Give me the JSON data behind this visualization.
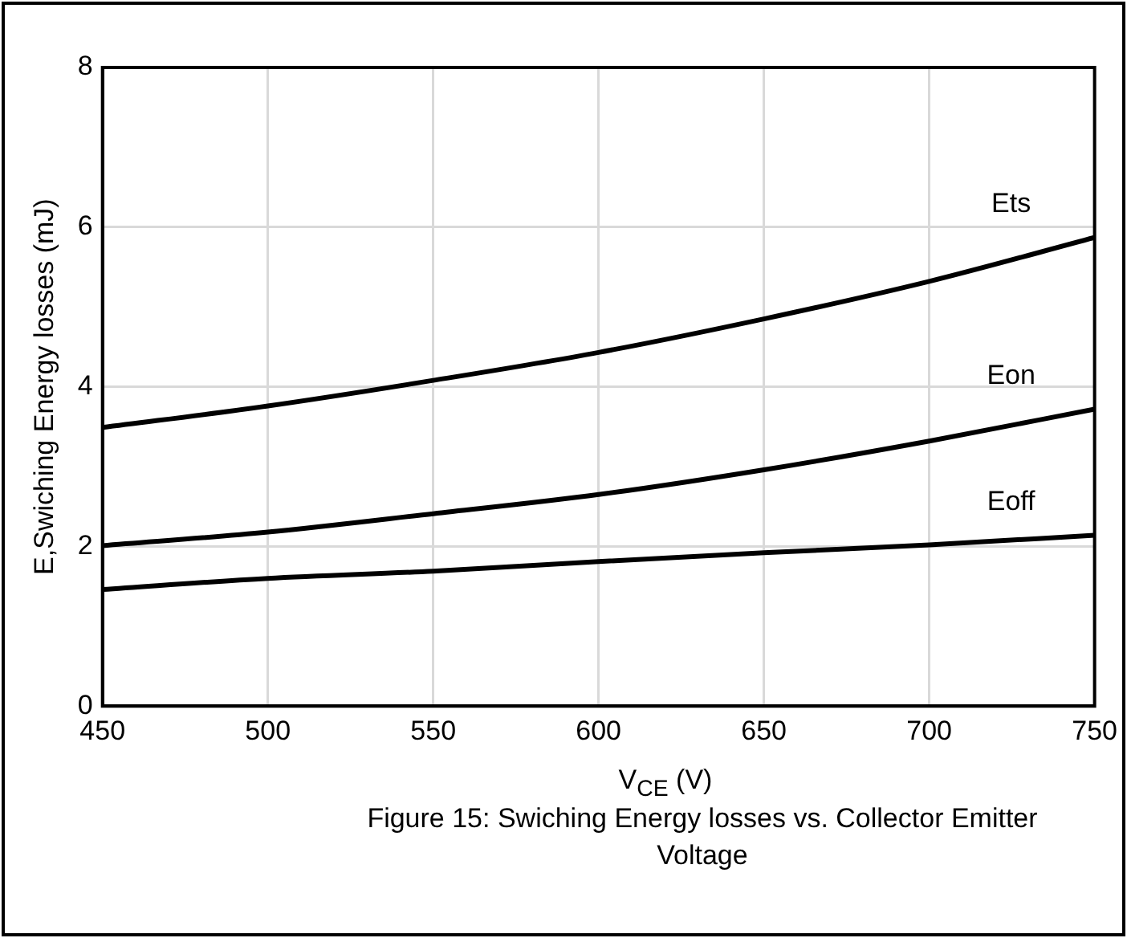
{
  "chart_data": {
    "type": "line",
    "xlabel": "V$_{CE}$ (V)",
    "ylabel": "E,Swiching Energy losses (mJ)",
    "x": [
      450,
      500,
      550,
      600,
      650,
      700,
      750
    ],
    "series": [
      {
        "name": "Ets",
        "color": "#000000",
        "values": [
          3.49,
          3.76,
          4.08,
          4.43,
          4.85,
          5.32,
          5.87
        ]
      },
      {
        "name": "Eon",
        "color": "#000000",
        "values": [
          2.01,
          2.18,
          2.41,
          2.65,
          2.96,
          3.32,
          3.72
        ]
      },
      {
        "name": "Eoff",
        "color": "#000000",
        "values": [
          1.46,
          1.6,
          1.69,
          1.81,
          1.92,
          2.02,
          2.14
        ]
      }
    ],
    "xlim": [
      450,
      750
    ],
    "xticks": [
      450,
      500,
      550,
      600,
      650,
      700,
      750
    ],
    "ylim": [
      0,
      8
    ],
    "yticks": [
      0,
      2,
      4,
      6,
      8
    ],
    "grid": true,
    "legend": false,
    "marker": "none",
    "line_style": "solid",
    "annotations": [
      "Figure 15: Swiching Energy losses vs. Collector Emitter Voltage"
    ]
  }
}
